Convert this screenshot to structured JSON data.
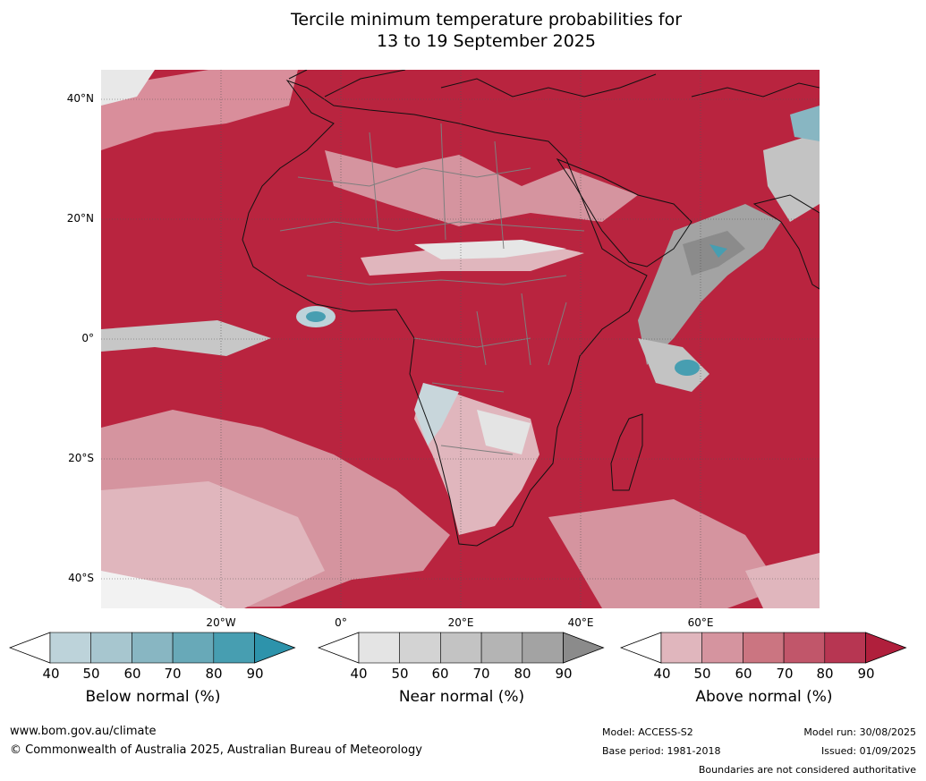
{
  "title_line1": "Tercile minimum temperature probabilities for",
  "title_line2": "13 to 19 September 2025",
  "lat_labels": [
    "40°N",
    "20°N",
    "0°",
    "20°S",
    "40°S"
  ],
  "lon_labels": [
    "20°W",
    "0°",
    "20°E",
    "40°E",
    "60°E"
  ],
  "colorbars": [
    {
      "title": "Below normal (%)",
      "ticks": [
        "40",
        "50",
        "60",
        "70",
        "80",
        "90"
      ],
      "colors": [
        "#ffffff",
        "#bdd3da",
        "#a7c6cf",
        "#88b6c2",
        "#68a9b8",
        "#479eb1",
        "#2d93ab"
      ]
    },
    {
      "title": "Near normal (%)",
      "ticks": [
        "40",
        "50",
        "60",
        "70",
        "80",
        "90"
      ],
      "colors": [
        "#ffffff",
        "#e4e4e4",
        "#d3d3d3",
        "#c3c3c3",
        "#b4b4b4",
        "#a3a3a3",
        "#8b8b8b"
      ]
    },
    {
      "title": "Above normal (%)",
      "ticks": [
        "40",
        "50",
        "60",
        "70",
        "80",
        "90"
      ],
      "colors": [
        "#ffffff",
        "#e0b6bd",
        "#d5949f",
        "#cb7581",
        "#c1566a",
        "#b73652",
        "#b01f3c"
      ]
    }
  ],
  "footer": {
    "website": "www.bom.gov.au/climate",
    "copyright": "© Commonwealth of Australia 2025, Australian Bureau of Meteorology",
    "model": "Model: ACCESS-S2",
    "base_period": "Base period: 1981-2018",
    "model_run": "Model run: 30/08/2025",
    "issued": "Issued: 01/09/2025",
    "disclaimer": "Boundaries are not considered authoritative"
  }
}
